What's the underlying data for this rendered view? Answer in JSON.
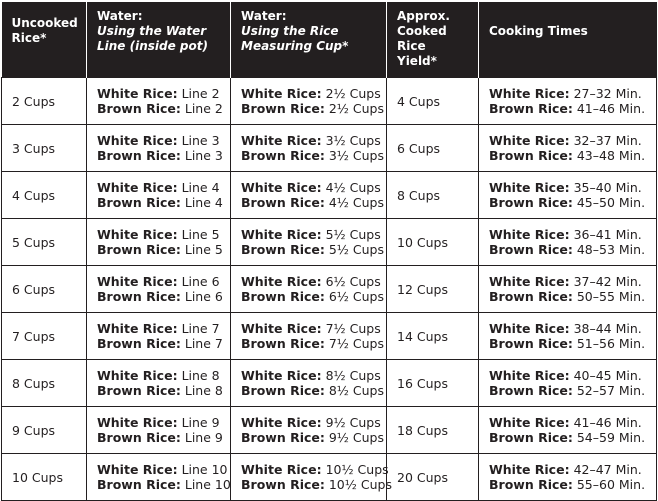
{
  "headers": [
    {
      "title": "Uncooked Rice*",
      "sub": ""
    },
    {
      "title": "Water:",
      "sub": "Using the Water Line (inside pot)"
    },
    {
      "title": "Water:",
      "sub": "Using the Rice Measuring Cup*"
    },
    {
      "title": "Approx. Cooked Rice Yield*",
      "sub": ""
    },
    {
      "title": "Cooking Times",
      "sub": ""
    }
  ],
  "labels": {
    "white": "White Rice:",
    "brown": "Brown Rice:"
  },
  "rows": [
    {
      "rice": "2 Cups",
      "line_white": "Line 2",
      "line_brown": "Line 2",
      "cup_white": "2½ Cups",
      "cup_brown": "2½ Cups",
      "yield": "4 Cups",
      "time_white": "27–32 Min.",
      "time_brown": "41–46 Min."
    },
    {
      "rice": "3 Cups",
      "line_white": "Line 3",
      "line_brown": "Line 3",
      "cup_white": "3½ Cups",
      "cup_brown": "3½ Cups",
      "yield": "6 Cups",
      "time_white": "32–37 Min.",
      "time_brown": "43–48 Min."
    },
    {
      "rice": "4 Cups",
      "line_white": "Line 4",
      "line_brown": "Line 4",
      "cup_white": "4½ Cups",
      "cup_brown": "4½ Cups",
      "yield": "8 Cups",
      "time_white": "35–40 Min.",
      "time_brown": "45–50 Min."
    },
    {
      "rice": "5 Cups",
      "line_white": "Line 5",
      "line_brown": "Line 5",
      "cup_white": "5½ Cups",
      "cup_brown": "5½ Cups",
      "yield": "10 Cups",
      "time_white": "36–41 Min.",
      "time_brown": "48–53 Min."
    },
    {
      "rice": "6 Cups",
      "line_white": "Line 6",
      "line_brown": "Line 6",
      "cup_white": "6½ Cups",
      "cup_brown": "6½ Cups",
      "yield": "12 Cups",
      "time_white": "37–42 Min.",
      "time_brown": "50–55 Min."
    },
    {
      "rice": "7 Cups",
      "line_white": "Line 7",
      "line_brown": "Line 7",
      "cup_white": "7½ Cups",
      "cup_brown": "7½ Cups",
      "yield": "14 Cups",
      "time_white": "38–44 Min.",
      "time_brown": "51–56 Min."
    },
    {
      "rice": "8 Cups",
      "line_white": "Line 8",
      "line_brown": "Line 8",
      "cup_white": "8½ Cups",
      "cup_brown": "8½ Cups",
      "yield": "16 Cups",
      "time_white": "40–45 Min.",
      "time_brown": "52–57 Min."
    },
    {
      "rice": "9 Cups",
      "line_white": "Line 9",
      "line_brown": "Line 9",
      "cup_white": "9½ Cups",
      "cup_brown": "9½ Cups",
      "yield": "18 Cups",
      "time_white": "41–46 Min.",
      "time_brown": "54–59 Min."
    },
    {
      "rice": "10 Cups",
      "line_white": "Line 10",
      "line_brown": "Line 10",
      "cup_white": "10½ Cups",
      "cup_brown": "10½ Cups",
      "yield": "20 Cups",
      "time_white": "42–47 Min.",
      "time_brown": "55–60 Min."
    }
  ]
}
